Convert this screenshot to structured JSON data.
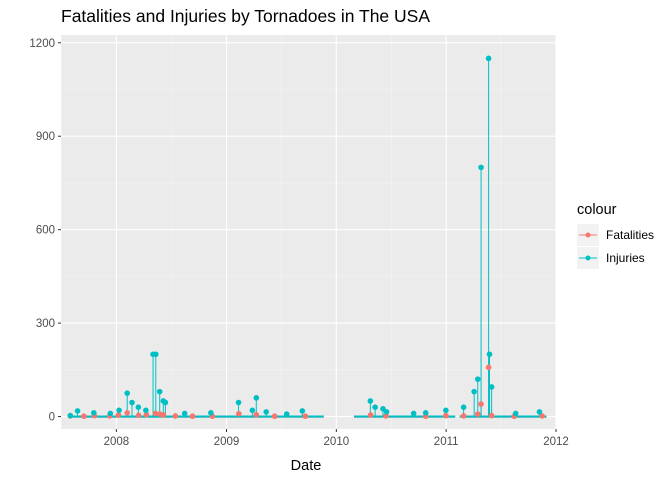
{
  "chart_data": {
    "type": "line",
    "title": "Fatalities and Injuries by Tornadoes in The USA",
    "xlabel": "Date",
    "ylabel": "",
    "x_ticks": [
      "2008",
      "2009",
      "2010",
      "2011",
      "2012"
    ],
    "y_ticks": [
      0,
      300,
      600,
      900,
      1200
    ],
    "xlim": [
      "2007-07-01",
      "2012-01-01"
    ],
    "ylim": [
      -40,
      1225
    ],
    "grid": true,
    "legend": {
      "title": "colour",
      "position": "right"
    },
    "series": [
      {
        "name": "Fatalities",
        "color": "#F8766D",
        "points": [
          [
            "2007-08-01",
            2
          ],
          [
            "2007-09-15",
            1
          ],
          [
            "2007-10-20",
            3
          ],
          [
            "2007-12-10",
            2
          ],
          [
            "2008-01-08",
            5
          ],
          [
            "2008-02-06",
            12
          ],
          [
            "2008-03-15",
            4
          ],
          [
            "2008-04-10",
            6
          ],
          [
            "2008-05-10",
            10
          ],
          [
            "2008-05-25",
            8
          ],
          [
            "2008-06-05",
            5
          ],
          [
            "2008-07-15",
            2
          ],
          [
            "2008-09-10",
            1
          ],
          [
            "2008-11-15",
            1
          ],
          [
            "2009-02-11",
            9
          ],
          [
            "2009-04-10",
            6
          ],
          [
            "2009-06-10",
            1
          ],
          [
            "2009-09-20",
            1
          ],
          [
            "2010-04-25",
            5
          ],
          [
            "2010-06-15",
            2
          ],
          [
            "2010-10-25",
            1
          ],
          [
            "2010-12-31",
            3
          ],
          [
            "2011-02-28",
            2
          ],
          [
            "2011-04-16",
            8
          ],
          [
            "2011-04-27",
            40
          ],
          [
            "2011-05-22",
            158
          ],
          [
            "2011-06-01",
            3
          ],
          [
            "2011-08-15",
            1
          ],
          [
            "2011-11-16",
            2
          ]
        ]
      },
      {
        "name": "Injuries",
        "color": "#00BFC4",
        "points": [
          [
            "2007-08-01",
            3
          ],
          [
            "2007-08-25",
            18
          ],
          [
            "2007-10-18",
            12
          ],
          [
            "2007-12-12",
            10
          ],
          [
            "2008-01-10",
            20
          ],
          [
            "2008-02-06",
            75
          ],
          [
            "2008-02-22",
            45
          ],
          [
            "2008-03-14",
            30
          ],
          [
            "2008-04-08",
            20
          ],
          [
            "2008-05-02",
            200
          ],
          [
            "2008-05-11",
            200
          ],
          [
            "2008-05-24",
            80
          ],
          [
            "2008-06-05",
            50
          ],
          [
            "2008-06-12",
            45
          ],
          [
            "2008-08-15",
            10
          ],
          [
            "2008-11-10",
            12
          ],
          [
            "2009-02-10",
            45
          ],
          [
            "2009-03-28",
            20
          ],
          [
            "2009-04-10",
            60
          ],
          [
            "2009-05-13",
            15
          ],
          [
            "2009-07-20",
            8
          ],
          [
            "2009-09-10",
            18
          ],
          [
            "2010-04-24",
            50
          ],
          [
            "2010-05-10",
            30
          ],
          [
            "2010-06-05",
            25
          ],
          [
            "2010-06-17",
            15
          ],
          [
            "2010-09-15",
            10
          ],
          [
            "2010-10-25",
            12
          ],
          [
            "2010-12-31",
            20
          ],
          [
            "2011-02-28",
            30
          ],
          [
            "2011-04-04",
            80
          ],
          [
            "2011-04-16",
            120
          ],
          [
            "2011-04-27",
            800
          ],
          [
            "2011-05-22",
            1150
          ],
          [
            "2011-05-25",
            200
          ],
          [
            "2011-06-01",
            95
          ],
          [
            "2011-08-20",
            10
          ],
          [
            "2011-11-07",
            15
          ]
        ]
      }
    ]
  }
}
